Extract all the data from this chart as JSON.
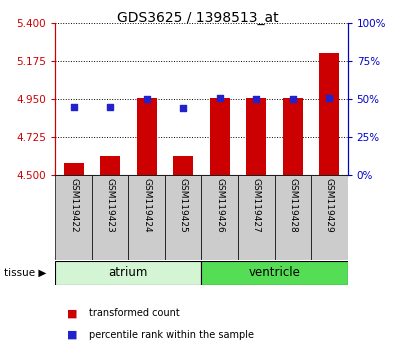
{
  "title": "GDS3625 / 1398513_at",
  "samples": [
    "GSM119422",
    "GSM119423",
    "GSM119424",
    "GSM119425",
    "GSM119426",
    "GSM119427",
    "GSM119428",
    "GSM119429"
  ],
  "red_values": [
    4.57,
    4.615,
    4.958,
    4.615,
    4.958,
    4.958,
    4.958,
    5.22
  ],
  "blue_values": [
    45,
    45,
    50,
    44,
    51,
    50,
    50,
    51
  ],
  "ymin": 4.5,
  "ymax": 5.4,
  "yticks": [
    4.5,
    4.725,
    4.95,
    5.175,
    5.4
  ],
  "y2min": 0,
  "y2max": 100,
  "y2ticks": [
    0,
    25,
    50,
    75,
    100
  ],
  "bar_color": "#cc0000",
  "dot_color": "#2222cc",
  "bar_width": 0.55,
  "tissue_groups": [
    {
      "label": "atrium",
      "samples": [
        0,
        1,
        2,
        3
      ],
      "color": "#d4f5d4"
    },
    {
      "label": "ventricle",
      "samples": [
        4,
        5,
        6,
        7
      ],
      "color": "#55dd55"
    }
  ],
  "tissue_label": "tissue",
  "legend_red": "transformed count",
  "legend_blue": "percentile rank within the sample",
  "yaxis_color": "#cc0000",
  "y2axis_color": "#0000cc",
  "title_fontsize": 10
}
